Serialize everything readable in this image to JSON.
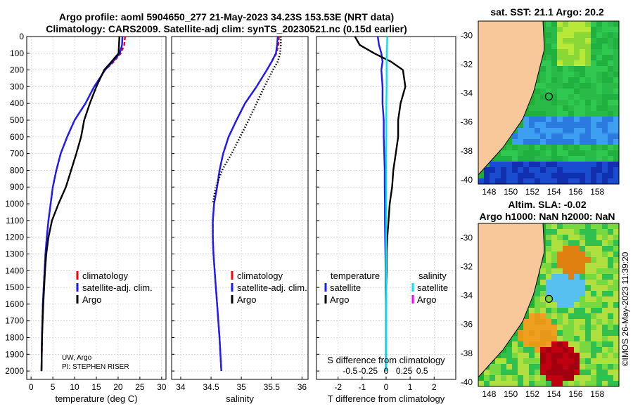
{
  "title_line1": "Argo profile: aoml 5904650_277 21-May-2023 34.23S 153.53E (NRT data)",
  "title_line2": "Climatology: CARS2009. Satellite-adj clim: synTS_20230521.nc (0.15d earlier)",
  "credit_line1": "UW, Argo",
  "credit_line2": "PI: STEPHEN RISER",
  "timestamp": "©IMOS 26-May-2023 11:39:20",
  "map1_title": "sat. SST: 21.1 Argo: 20.2",
  "map2_title_line1": "Altim. SLA: -0.02",
  "map2_title_line2": "Argo h1000: NaN h2000: NaN",
  "colors": {
    "climatology": "#ff0000",
    "satellite": "#1a1aff",
    "argo": "#000000",
    "sat_salinity": "#00e5ee",
    "argo_salinity": "#ff00ff",
    "land": "#f8c89a"
  },
  "chart_data": [
    {
      "type": "line",
      "name": "temperature",
      "xlabel": "temperature (deg C)",
      "ylabel": "",
      "xlim": [
        -1,
        31
      ],
      "ylim": [
        2050,
        0
      ],
      "xticks": [
        0,
        5,
        10,
        15,
        20,
        25,
        30
      ],
      "yticks": [
        0,
        100,
        200,
        300,
        400,
        500,
        600,
        700,
        800,
        900,
        1000,
        1100,
        1200,
        1300,
        1400,
        1500,
        1600,
        1700,
        1800,
        1900,
        2000
      ],
      "legend": [
        "climatology",
        "satellite-adj. clim.",
        "Argo"
      ],
      "series": [
        {
          "name": "climatology",
          "style": "dashed",
          "color": "#ff0000",
          "x": [
            21.6,
            21.4,
            20.6,
            19,
            17,
            14.5,
            12.5,
            10,
            8.3,
            6.8,
            5.8,
            5,
            4.5,
            4,
            3.6,
            3.3,
            3.1,
            2.9,
            2.7,
            2.6,
            2.5,
            2.4
          ],
          "y": [
            0,
            50,
            100,
            150,
            200,
            300,
            400,
            500,
            600,
            700,
            800,
            900,
            1000,
            1100,
            1200,
            1300,
            1400,
            1500,
            1600,
            1700,
            1800,
            2000
          ]
        },
        {
          "name": "satellite-adj. clim.",
          "style": "solid",
          "color": "#1a1aff",
          "x": [
            21,
            20.9,
            20.4,
            18.8,
            17,
            14.5,
            12.5,
            10,
            8.3,
            6.8,
            5.8,
            5,
            4.5,
            4,
            3.6,
            3.3,
            3.1,
            2.9,
            2.7,
            2.6,
            2.5,
            2.4
          ],
          "y": [
            0,
            50,
            100,
            150,
            200,
            300,
            400,
            500,
            600,
            700,
            800,
            900,
            1000,
            1100,
            1200,
            1300,
            1400,
            1500,
            1600,
            1700,
            1800,
            2000
          ]
        },
        {
          "name": "Argo",
          "style": "solid",
          "color": "#000000",
          "x": [
            20.3,
            20.2,
            20.1,
            18.5,
            16.8,
            15,
            13.5,
            12.2,
            11.5,
            10.4,
            9.2,
            8,
            6.3,
            4.8,
            4,
            3.5,
            3.2,
            3,
            2.8,
            2.65,
            2.5,
            2.4
          ],
          "y": [
            0,
            50,
            100,
            150,
            200,
            300,
            400,
            500,
            600,
            700,
            800,
            900,
            1000,
            1100,
            1200,
            1300,
            1400,
            1500,
            1600,
            1700,
            1800,
            2000
          ]
        }
      ]
    },
    {
      "type": "line",
      "name": "salinity",
      "xlabel": "salinity",
      "ylabel": "",
      "xlim": [
        33.85,
        36.1
      ],
      "ylim": [
        2050,
        0
      ],
      "xticks": [
        34,
        34.5,
        35,
        35.5,
        36
      ],
      "legend": [
        "climatology",
        "satellite-adj. clim.",
        "Argo"
      ],
      "series": [
        {
          "name": "climatology",
          "style": "dashed",
          "color": "#ff0000",
          "x": [
            35.62,
            35.61,
            35.58,
            35.5,
            35.42,
            35.25,
            35.06,
            34.92,
            34.79,
            34.7,
            34.64,
            34.6,
            34.55,
            34.53,
            34.53,
            34.54,
            34.56,
            34.58,
            34.6,
            34.62,
            34.64,
            34.67
          ],
          "y": [
            0,
            50,
            100,
            150,
            200,
            300,
            400,
            500,
            600,
            700,
            800,
            900,
            1000,
            1100,
            1200,
            1300,
            1400,
            1500,
            1600,
            1700,
            1800,
            2000
          ]
        },
        {
          "name": "satellite-adj. clim.",
          "style": "solid",
          "color": "#1a1aff",
          "x": [
            35.6,
            35.59,
            35.57,
            35.5,
            35.42,
            35.25,
            35.06,
            34.92,
            34.79,
            34.7,
            34.64,
            34.6,
            34.55,
            34.53,
            34.53,
            34.54,
            34.56,
            34.58,
            34.6,
            34.62,
            34.64,
            34.67
          ],
          "y": [
            0,
            50,
            100,
            150,
            200,
            300,
            400,
            500,
            600,
            700,
            800,
            900,
            1000,
            1100,
            1200,
            1300,
            1400,
            1500,
            1600,
            1700,
            1800,
            2000
          ]
        },
        {
          "name": "Argo",
          "style": "dotted",
          "color": "#000000",
          "x": [
            35.65,
            35.65,
            35.64,
            35.6,
            35.52,
            35.38,
            35.25,
            35.12,
            34.98,
            34.84,
            34.68,
            34.58,
            34.53
          ],
          "y": [
            0,
            50,
            100,
            150,
            200,
            300,
            400,
            500,
            600,
            700,
            800,
            900,
            1000
          ]
        }
      ]
    },
    {
      "type": "line",
      "name": "difference",
      "xlabel": "T difference from climatology",
      "x2label": "S difference from climatology",
      "xlim": [
        -2.9,
        2.9
      ],
      "ylim": [
        2050,
        0
      ],
      "xticks": [
        -2,
        -1,
        0,
        1,
        2
      ],
      "x2ticks": [
        "-0.5",
        "-0.25",
        "0",
        "0.25",
        "0.5"
      ],
      "legend_temperature": [
        "temperature",
        "satellite",
        "Argo"
      ],
      "legend_salinity": [
        "salinity",
        "satellite",
        "Argo"
      ],
      "series": [
        {
          "name": "temperature satellite",
          "color": "#1a1aff",
          "x": [
            -0.35,
            -0.3,
            -0.2,
            -0.15,
            -0.2,
            -0.15,
            -0.15,
            -0.1,
            -0.1,
            -0.08,
            -0.06,
            -0.06,
            -0.05,
            -0.05,
            -0.04,
            -0.03,
            -0.02,
            -0.02,
            -0.01,
            -0.01,
            -0.01,
            -0.01
          ],
          "y": [
            0,
            50,
            100,
            150,
            200,
            300,
            400,
            500,
            600,
            700,
            800,
            900,
            1000,
            1100,
            1200,
            1300,
            1400,
            1500,
            1600,
            1700,
            1800,
            2000
          ]
        },
        {
          "name": "temperature Argo",
          "color": "#000000",
          "x": [
            -1.3,
            -1.1,
            -0.5,
            0.2,
            0.7,
            0.8,
            0.6,
            0.5,
            0.5,
            0.4,
            0.3,
            0.25,
            0.15,
            0.1,
            0.05,
            0.02,
            0.02,
            0,
            0,
            0,
            0,
            0
          ],
          "y": [
            0,
            50,
            100,
            150,
            200,
            300,
            400,
            500,
            600,
            700,
            800,
            900,
            1000,
            1100,
            1200,
            1300,
            1400,
            1500,
            1600,
            1700,
            1800,
            2000
          ]
        },
        {
          "name": "salinity satellite",
          "color": "#00e5ee",
          "x": [
            0.05,
            0.04,
            0.03,
            0.02,
            0.02,
            0.02,
            0.01,
            0.01,
            0.01,
            0,
            0,
            0,
            0,
            0,
            0,
            0,
            0,
            0,
            0,
            0,
            0,
            0
          ],
          "y": [
            0,
            50,
            100,
            150,
            200,
            300,
            400,
            500,
            600,
            700,
            800,
            900,
            1000,
            1100,
            1200,
            1300,
            1400,
            1500,
            1600,
            1700,
            1800,
            2000
          ]
        }
      ]
    }
  ],
  "map1": {
    "x_ticks": [
      "148",
      "150",
      "152",
      "154",
      "156",
      "158"
    ],
    "y_ticks": [
      "-30",
      "-32",
      "-34",
      "-36",
      "-38",
      "-40"
    ]
  },
  "map2": {
    "x_ticks": [
      "148",
      "150",
      "152",
      "154",
      "156",
      "158"
    ],
    "y_ticks": [
      "-30",
      "-32",
      "-34",
      "-36",
      "-38",
      "-40"
    ]
  },
  "float_position": {
    "lon": 153.53,
    "lat": -34.23
  }
}
